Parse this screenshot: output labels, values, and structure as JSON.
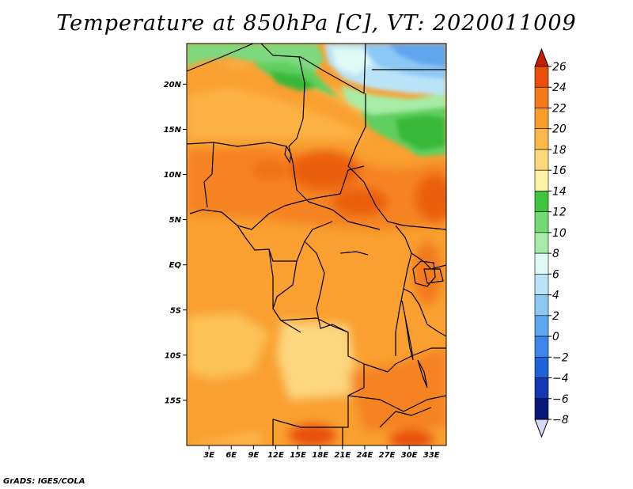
{
  "title": "Temperature at 850hPa [C], VT: 2020011009",
  "footer": "GrADS: IGES/COLA",
  "map": {
    "lat_range": [
      -20,
      24.5
    ],
    "lon_range": [
      0,
      35
    ],
    "lat_labels": [
      {
        "value": 20,
        "text": "20N"
      },
      {
        "value": 15,
        "text": "15N"
      },
      {
        "value": 10,
        "text": "10N"
      },
      {
        "value": 5,
        "text": "5N"
      },
      {
        "value": 0,
        "text": "EQ"
      },
      {
        "value": -5,
        "text": "5S"
      },
      {
        "value": -10,
        "text": "10S"
      },
      {
        "value": -15,
        "text": "15S"
      }
    ],
    "lon_labels": [
      {
        "value": 3,
        "text": "3E"
      },
      {
        "value": 6,
        "text": "6E"
      },
      {
        "value": 9,
        "text": "9E"
      },
      {
        "value": 12,
        "text": "12E"
      },
      {
        "value": 15,
        "text": "15E"
      },
      {
        "value": 18,
        "text": "18E"
      },
      {
        "value": 21,
        "text": "21E"
      },
      {
        "value": 24,
        "text": "24E"
      },
      {
        "value": 27,
        "text": "27E"
      },
      {
        "value": 30,
        "text": "30E"
      },
      {
        "value": 33,
        "text": "33E"
      }
    ]
  },
  "colorbar": {
    "levels": [
      {
        "value": 26,
        "label": "26",
        "color": "#c81e00"
      },
      {
        "value": 24,
        "label": "24",
        "color": "#e84f0a"
      },
      {
        "value": 22,
        "label": "22",
        "color": "#f27a1a"
      },
      {
        "value": 20,
        "label": "20",
        "color": "#f99d2a"
      },
      {
        "value": 18,
        "label": "18",
        "color": "#fcb848"
      },
      {
        "value": 16,
        "label": "16",
        "color": "#fdd87a"
      },
      {
        "value": 14,
        "label": "14",
        "color": "#fef2a8"
      },
      {
        "value": 12,
        "label": "12",
        "color": "#3ec43e"
      },
      {
        "value": 10,
        "label": "10",
        "color": "#72da72"
      },
      {
        "value": 8,
        "label": "8",
        "color": "#a6eca6"
      },
      {
        "value": 6,
        "label": "6",
        "color": "#dff9f4"
      },
      {
        "value": 4,
        "label": "4",
        "color": "#b9e4f8"
      },
      {
        "value": 2,
        "label": "2",
        "color": "#8cc8f4"
      },
      {
        "value": 0,
        "label": "0",
        "color": "#5ea6ef"
      },
      {
        "value": -2,
        "label": "−2",
        "color": "#3d85e8"
      },
      {
        "value": -4,
        "label": "−4",
        "color": "#1e62d8"
      },
      {
        "value": -6,
        "label": "−6",
        "color": "#1238b4"
      },
      {
        "value": -8,
        "label": "−8",
        "color": "#0a1878"
      }
    ],
    "top_arrow_color": "#c81e00",
    "bottom_arrow_color": "#d9d9f5"
  }
}
